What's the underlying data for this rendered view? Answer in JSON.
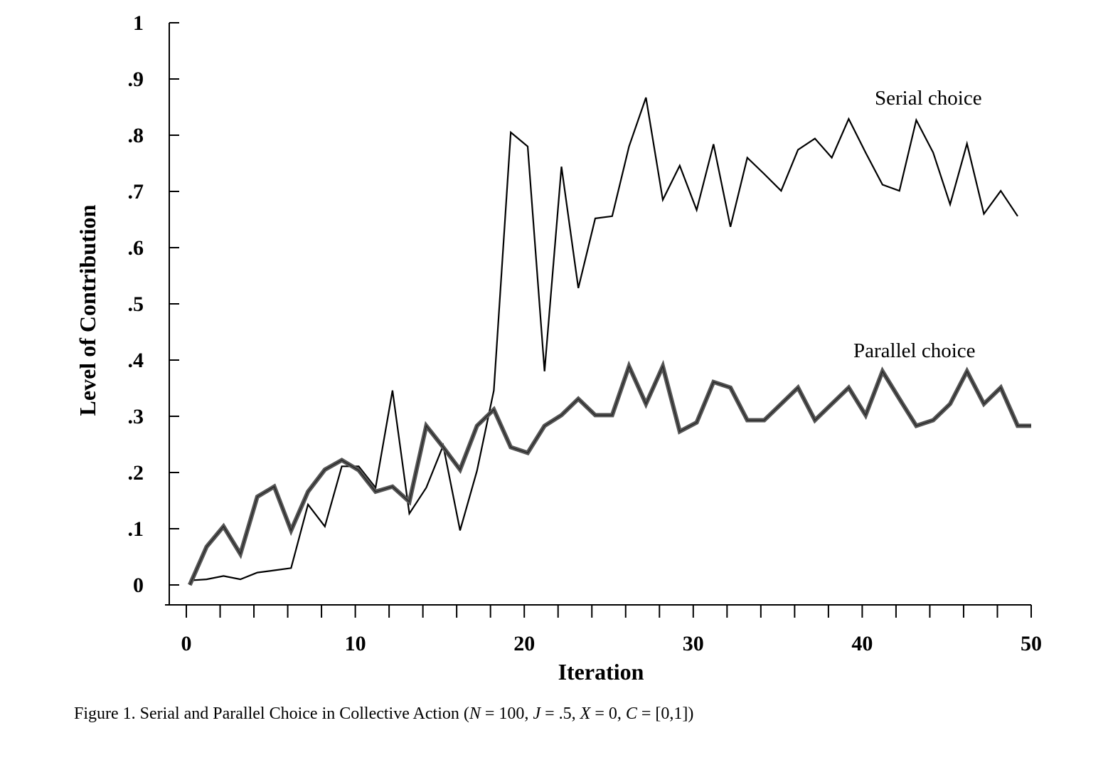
{
  "chart_data": {
    "type": "line",
    "xlabel": "Iteration",
    "ylabel": "Level of Contribution",
    "xlim": [
      0,
      50
    ],
    "ylim": [
      0,
      1
    ],
    "xticks": [
      0,
      10,
      20,
      30,
      40,
      50
    ],
    "xtick_labels": [
      "0",
      "10",
      "20",
      "30",
      "40",
      "50"
    ],
    "yticks": [
      0,
      0.1,
      0.2,
      0.3,
      0.4,
      0.5,
      0.6,
      0.7,
      0.8,
      0.9,
      1
    ],
    "ytick_labels": [
      "0",
      ".1",
      ".2",
      ".3",
      ".4",
      ".5",
      ".6",
      ".7",
      ".8",
      ".9",
      "1"
    ],
    "grid": false,
    "legend": "inline-labels",
    "series": [
      {
        "name": "Serial choice",
        "style": "thin",
        "color": "#000000",
        "x": [
          0.2,
          1.2,
          2.2,
          3.2,
          4.2,
          5.2,
          6.2,
          7.2,
          8.2,
          9.2,
          10.2,
          11.2,
          12.2,
          13.2,
          14.2,
          15.2,
          16.2,
          17.2,
          18.2,
          19.2,
          20.2,
          21.2,
          22.2,
          23.2,
          24.2,
          25.2,
          26.2,
          27.2,
          28.2,
          29.2,
          30.2,
          31.2,
          32.2,
          33.2,
          34.2,
          35.2,
          36.2,
          37.2,
          38.2,
          39.2,
          40.2,
          41.2,
          42.2,
          43.2,
          44.2,
          45.2,
          46.2,
          47.2,
          48.2,
          49.2
        ],
        "y": [
          0.008,
          0.01,
          0.016,
          0.01,
          0.022,
          0.026,
          0.03,
          0.143,
          0.104,
          0.211,
          0.211,
          0.173,
          0.346,
          0.127,
          0.173,
          0.248,
          0.097,
          0.203,
          0.346,
          0.805,
          0.78,
          0.38,
          0.744,
          0.528,
          0.652,
          0.656,
          0.78,
          0.867,
          0.685,
          0.746,
          0.667,
          0.784,
          0.637,
          0.76,
          0.731,
          0.701,
          0.774,
          0.794,
          0.76,
          0.829,
          0.769,
          0.712,
          0.701,
          0.827,
          0.769,
          0.677,
          0.785,
          0.66,
          0.701,
          0.656
        ]
      },
      {
        "name": "Parallel choice",
        "style": "thick",
        "color": "#555555",
        "x": [
          0.2,
          1.2,
          2.2,
          3.2,
          4.2,
          5.2,
          6.2,
          7.2,
          8.2,
          9.2,
          10.2,
          11.2,
          12.2,
          13.2,
          14.2,
          15.2,
          16.2,
          17.2,
          18.2,
          19.2,
          20.2,
          21.2,
          22.2,
          23.2,
          24.2,
          25.2,
          26.2,
          27.2,
          28.2,
          29.2,
          30.2,
          31.2,
          32.2,
          33.2,
          34.2,
          35.2,
          36.2,
          37.2,
          38.2,
          39.2,
          40.2,
          41.2,
          42.2,
          43.2,
          44.2,
          45.2,
          46.2,
          47.2,
          48.2,
          49.2,
          50.0
        ],
        "y": [
          0.0,
          0.068,
          0.104,
          0.055,
          0.157,
          0.175,
          0.097,
          0.166,
          0.205,
          0.222,
          0.204,
          0.166,
          0.175,
          0.148,
          0.283,
          0.245,
          0.205,
          0.283,
          0.312,
          0.245,
          0.235,
          0.283,
          0.302,
          0.331,
          0.302,
          0.302,
          0.389,
          0.322,
          0.389,
          0.273,
          0.289,
          0.361,
          0.351,
          0.293,
          0.293,
          0.322,
          0.351,
          0.293,
          0.322,
          0.351,
          0.302,
          0.38,
          0.331,
          0.283,
          0.293,
          0.322,
          0.38,
          0.322,
          0.351,
          0.283,
          0.283
        ]
      }
    ],
    "annotations": [
      "Serial choice",
      "Parallel choice"
    ]
  },
  "caption": {
    "prefix": "Figure 1.  Serial and Parallel Choice in Collective Action (",
    "n_var": "N",
    "n_val": " = 100, ",
    "j_var": "J",
    "j_val": " = .5, ",
    "x_var": "X",
    "x_val": " = 0, ",
    "c_var": "C",
    "c_val": " = [0,1])"
  }
}
